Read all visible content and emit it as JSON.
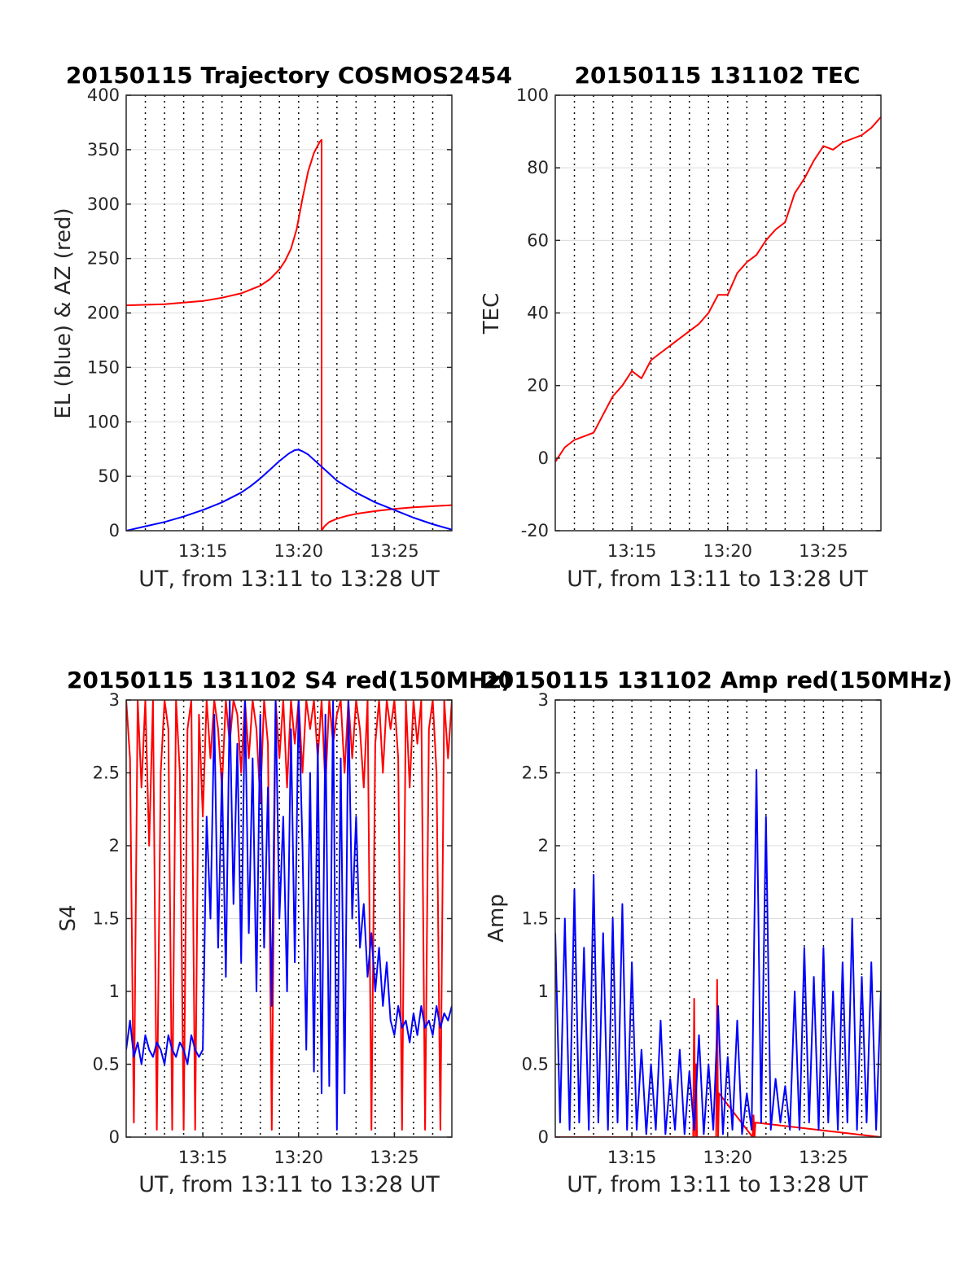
{
  "chart_data": [
    {
      "type": "line",
      "title": "20150115 Trajectory COSMOS2454",
      "xlabel": "UT, from 13:11 to 13:28 UT",
      "ylabel": "EL (blue) & AZ (red)",
      "xlim": [
        0,
        17
      ],
      "ylim": [
        0,
        400
      ],
      "xticks": [
        4,
        9,
        14
      ],
      "xticklabels": [
        "13:15",
        "13:20",
        "13:25"
      ],
      "yticks": [
        0,
        50,
        100,
        150,
        200,
        250,
        300,
        350,
        400
      ],
      "yticklabels": [
        "0",
        "50",
        "100",
        "150",
        "200",
        "250",
        "300",
        "350",
        "400"
      ],
      "grid": true,
      "series": [
        {
          "color": "#ff0000",
          "x": [
            0,
            2,
            4,
            5,
            6,
            7,
            7.5,
            8,
            8.3,
            8.6,
            8.9,
            9.2,
            9.5,
            9.8,
            10.1,
            10.2,
            10.2,
            10.35,
            10.6,
            11,
            11.5,
            12,
            13,
            14,
            15,
            16,
            17
          ],
          "y": [
            207,
            208,
            211,
            214,
            218,
            225,
            231,
            240,
            248,
            259,
            277,
            305,
            330,
            347,
            357,
            359,
            0,
            4,
            8,
            11,
            13.5,
            15.5,
            18,
            20,
            21.5,
            22.5,
            23.5
          ]
        },
        {
          "color": "#0000ff",
          "x": [
            0,
            1,
            2,
            3,
            4,
            5,
            6,
            6.5,
            7,
            7.5,
            8,
            8.5,
            8.8,
            9,
            9.2,
            9.5,
            10,
            10.5,
            11,
            12,
            13,
            14,
            15,
            16,
            17
          ],
          "y": [
            0,
            4,
            8,
            13,
            19,
            26,
            35,
            41,
            48,
            56,
            64,
            71,
            74,
            74.5,
            73,
            70,
            62,
            54,
            46,
            35,
            26,
            19,
            12,
            6,
            1
          ]
        }
      ]
    },
    {
      "type": "line",
      "title": "20150115 131102 TEC",
      "xlabel": "UT, from 13:11 to 13:28 UT",
      "ylabel": "TEC",
      "xlim": [
        0,
        17
      ],
      "ylim": [
        -20,
        100
      ],
      "xticks": [
        4,
        9,
        14
      ],
      "xticklabels": [
        "13:15",
        "13:20",
        "13:25"
      ],
      "yticks": [
        -20,
        0,
        20,
        40,
        60,
        80,
        100
      ],
      "yticklabels": [
        "-20",
        "0",
        "20",
        "40",
        "60",
        "80",
        "100"
      ],
      "grid": true,
      "series": [
        {
          "color": "#ff0000",
          "x": [
            0,
            0.5,
            1,
            1.5,
            2,
            2.5,
            3,
            3.5,
            4,
            4.5,
            5,
            5.5,
            6,
            6.5,
            7,
            7.5,
            8,
            8.5,
            9,
            9.5,
            10,
            10.5,
            11,
            11.5,
            12,
            12.5,
            13,
            13.5,
            14,
            14.5,
            15,
            15.5,
            16,
            16.5,
            17
          ],
          "y": [
            -1,
            3,
            5,
            6,
            7,
            12,
            17,
            20,
            24,
            22,
            27,
            29,
            31,
            33,
            35,
            37,
            40,
            45,
            45,
            51,
            54,
            56,
            60,
            63,
            65,
            73,
            77,
            82,
            86,
            85,
            87,
            88,
            89,
            91,
            94
          ]
        }
      ]
    },
    {
      "type": "line",
      "title": "20150115 131102 S4 red(150MHz)",
      "xlabel": "UT, from 13:11 to 13:28 UT",
      "ylabel": "S4",
      "xlim": [
        0,
        17
      ],
      "ylim": [
        0,
        3
      ],
      "xticks": [
        4,
        9,
        14
      ],
      "xticklabels": [
        "13:15",
        "13:20",
        "13:25"
      ],
      "yticks": [
        0,
        0.5,
        1,
        1.5,
        2,
        2.5,
        3
      ],
      "yticklabels": [
        "0",
        "0.5",
        "1",
        "1.5",
        "2",
        "2.5",
        "3"
      ],
      "grid": true,
      "series": [
        {
          "color": "#ff0000",
          "x": [
            0,
            0.2,
            0.4,
            0.6,
            0.8,
            1.0,
            1.2,
            1.4,
            1.6,
            1.8,
            2.0,
            2.2,
            2.4,
            2.6,
            2.8,
            3.0,
            3.2,
            3.4,
            3.6,
            3.8,
            4.0,
            4.2,
            4.4,
            4.6,
            4.8,
            5.0,
            5.2,
            5.4,
            5.6,
            5.8,
            6.0,
            6.2,
            6.4,
            6.6,
            6.8,
            7.0,
            7.2,
            7.4,
            7.6,
            7.8,
            8.0,
            8.2,
            8.4,
            8.6,
            8.8,
            9.0,
            9.2,
            9.4,
            9.6,
            9.8,
            10.0,
            10.2,
            10.4,
            10.6,
            10.8,
            11.0,
            11.2,
            11.4,
            11.6,
            11.8,
            12.0,
            12.2,
            12.4,
            12.6,
            12.8,
            13.0,
            13.2,
            13.4,
            13.6,
            13.8,
            14.0,
            14.2,
            14.4,
            14.6,
            14.8,
            15.0,
            15.2,
            15.4,
            15.6,
            15.8,
            16.0,
            16.2,
            16.4,
            16.6,
            16.8,
            17.0
          ],
          "y": [
            3,
            2.6,
            0.1,
            3,
            2.4,
            3,
            2.0,
            3,
            0.05,
            2.5,
            3,
            2.8,
            0.05,
            3,
            2.5,
            0.05,
            2.8,
            3,
            0.05,
            2.9,
            2.2,
            3,
            2.6,
            3,
            2.8,
            2.4,
            3,
            2.7,
            3,
            2.9,
            2.5,
            3,
            2.6,
            3,
            2.8,
            2.3,
            3,
            2.7,
            0.05,
            3,
            2.6,
            3,
            2.4,
            3,
            2.7,
            3,
            2.5,
            3,
            2.8,
            3,
            2.6,
            3,
            2.4,
            3,
            2.7,
            2.9,
            3,
            2.5,
            3,
            2.6,
            3,
            2.8,
            2.4,
            3,
            0.05,
            2.7,
            3,
            2.5,
            3,
            2.8,
            3,
            2.6,
            0.05,
            3,
            2.4,
            3,
            2.7,
            3,
            0.05,
            2.8,
            3,
            2.5,
            0.05,
            3,
            2.6,
            3
          ]
        },
        {
          "color": "#0000ff",
          "x": [
            0,
            0.2,
            0.4,
            0.6,
            0.8,
            1.0,
            1.2,
            1.4,
            1.6,
            1.8,
            2.0,
            2.2,
            2.4,
            2.6,
            2.8,
            3.0,
            3.2,
            3.4,
            3.6,
            3.8,
            4.0,
            4.2,
            4.4,
            4.6,
            4.8,
            5.0,
            5.2,
            5.4,
            5.6,
            5.8,
            6.0,
            6.2,
            6.4,
            6.6,
            6.8,
            7.0,
            7.2,
            7.4,
            7.6,
            7.8,
            8.0,
            8.2,
            8.4,
            8.6,
            8.8,
            9.0,
            9.2,
            9.4,
            9.6,
            9.8,
            10.0,
            10.2,
            10.4,
            10.6,
            10.8,
            11.0,
            11.2,
            11.4,
            11.6,
            11.8,
            12.0,
            12.2,
            12.4,
            12.6,
            12.8,
            13.0,
            13.2,
            13.4,
            13.6,
            13.8,
            14.0,
            14.2,
            14.4,
            14.6,
            14.8,
            15.0,
            15.2,
            15.4,
            15.6,
            15.8,
            16.0,
            16.2,
            16.4,
            16.6,
            16.8,
            17.0
          ],
          "y": [
            0.6,
            0.8,
            0.55,
            0.65,
            0.5,
            0.7,
            0.6,
            0.55,
            0.65,
            0.6,
            0.5,
            0.7,
            0.6,
            0.55,
            0.65,
            0.6,
            0.5,
            0.7,
            0.6,
            0.55,
            0.6,
            2.2,
            1.5,
            2.9,
            1.3,
            2.5,
            1.1,
            3,
            1.6,
            2.7,
            1.2,
            3,
            1.4,
            2.6,
            1.0,
            2.9,
            1.3,
            2.4,
            0.9,
            3,
            1.5,
            2.2,
            1.0,
            2.8,
            1.2,
            3,
            2.0,
            0.6,
            2.5,
            0.45,
            2.7,
            0.3,
            2.9,
            0.35,
            3,
            0.05,
            2.6,
            0.3,
            3,
            1.5,
            2.2,
            1.3,
            1.6,
            1.1,
            1.4,
            1.0,
            1.3,
            0.9,
            1.2,
            0.8,
            0.7,
            0.9,
            0.75,
            0.8,
            0.65,
            0.85,
            0.7,
            0.9,
            0.75,
            0.8,
            0.7,
            0.9,
            0.75,
            0.85,
            0.8,
            0.9
          ]
        }
      ]
    },
    {
      "type": "line",
      "title": "20150115 131102 Amp red(150MHz)",
      "xlabel": "UT, from 13:11 to 13:28 UT",
      "ylabel": "Amp",
      "xlim": [
        0,
        17
      ],
      "ylim": [
        0,
        3
      ],
      "xticks": [
        4,
        9,
        14
      ],
      "xticklabels": [
        "13:15",
        "13:20",
        "13:25"
      ],
      "yticks": [
        0,
        0.5,
        1,
        1.5,
        2,
        2.5,
        3
      ],
      "yticklabels": [
        "0",
        "0.5",
        "1",
        "1.5",
        "2",
        "2.5",
        "3"
      ],
      "grid": true,
      "series": [
        {
          "color": "#ff0000",
          "x": [
            0,
            7.2,
            7.25,
            7.3,
            7.35,
            7.4,
            8.4,
            8.45,
            8.5,
            8.55,
            10.3,
            10.35,
            10.4,
            10.45,
            17
          ],
          "y": [
            0,
            0,
            0.95,
            0,
            0.5,
            0,
            0,
            1.08,
            0,
            0.3,
            0,
            0.15,
            0,
            0.1,
            0
          ]
        },
        {
          "color": "#0000ff",
          "x": [
            0,
            0.25,
            0.5,
            0.75,
            1.0,
            1.25,
            1.5,
            1.75,
            2.0,
            2.25,
            2.5,
            2.75,
            3.0,
            3.25,
            3.5,
            3.75,
            4.0,
            4.25,
            4.5,
            4.75,
            5.0,
            5.25,
            5.5,
            5.75,
            6.0,
            6.25,
            6.5,
            6.75,
            7.0,
            7.25,
            7.5,
            7.75,
            8.0,
            8.25,
            8.5,
            8.75,
            9.0,
            9.25,
            9.5,
            9.75,
            10.0,
            10.25,
            10.5,
            10.75,
            11.0,
            11.25,
            11.5,
            11.75,
            12.0,
            12.25,
            12.5,
            12.75,
            13.0,
            13.25,
            13.5,
            13.75,
            14.0,
            14.25,
            14.5,
            14.75,
            15.0,
            15.25,
            15.5,
            15.75,
            16.0,
            16.25,
            16.5,
            16.75,
            17.0
          ],
          "y": [
            1.4,
            0.1,
            1.5,
            0.05,
            1.7,
            0.1,
            1.3,
            0.05,
            1.8,
            0.1,
            1.4,
            0.05,
            1.5,
            0.1,
            1.6,
            0.05,
            1.2,
            0.05,
            0.6,
            0.02,
            0.5,
            0.05,
            0.8,
            0.02,
            0.4,
            0.05,
            0.6,
            0.02,
            0.45,
            0.05,
            0.7,
            0.02,
            0.5,
            0.05,
            0.9,
            0.02,
            0.55,
            0.05,
            0.8,
            0.02,
            0.3,
            0.05,
            2.52,
            0.1,
            2.2,
            0.05,
            0.4,
            0.1,
            0.35,
            0.05,
            1.0,
            0.05,
            1.3,
            0.1,
            1.1,
            0.05,
            1.3,
            0.1,
            1.0,
            0.05,
            1.2,
            0.1,
            1.5,
            0.05,
            1.1,
            0.1,
            1.2,
            0.05,
            1.0
          ]
        }
      ]
    }
  ]
}
